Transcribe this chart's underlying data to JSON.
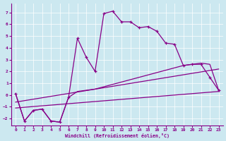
{
  "xlabel": "Windchill (Refroidissement éolien,°C)",
  "background_color": "#cce8f0",
  "line_color": "#880088",
  "xlim": [
    -0.5,
    23.5
  ],
  "ylim": [
    -2.6,
    7.8
  ],
  "yticks": [
    -2,
    -1,
    0,
    1,
    2,
    3,
    4,
    5,
    6,
    7
  ],
  "xticks": [
    0,
    1,
    2,
    3,
    4,
    5,
    6,
    7,
    8,
    9,
    10,
    11,
    12,
    13,
    14,
    15,
    16,
    17,
    18,
    19,
    20,
    21,
    22,
    23
  ],
  "series1_x": [
    0,
    1,
    2,
    3,
    4,
    5,
    6,
    7,
    8,
    9,
    10,
    11,
    12,
    13,
    14,
    15,
    16,
    17,
    18,
    19,
    20,
    21,
    22,
    23
  ],
  "series1_y": [
    0.1,
    -2.2,
    -1.3,
    -1.2,
    -2.2,
    -2.3,
    -0.2,
    4.8,
    3.2,
    2.0,
    6.9,
    7.1,
    6.2,
    6.2,
    5.7,
    5.8,
    5.4,
    4.4,
    4.3,
    2.5,
    2.6,
    2.6,
    1.5,
    0.4
  ],
  "series2_x": [
    0,
    1,
    2,
    3,
    4,
    5,
    6,
    7,
    8,
    9,
    10,
    11,
    12,
    13,
    14,
    15,
    16,
    17,
    18,
    19,
    20,
    21,
    22,
    23
  ],
  "series2_y": [
    0.1,
    -2.2,
    -1.3,
    -1.2,
    -2.2,
    -2.3,
    -0.2,
    0.3,
    0.4,
    0.5,
    0.7,
    0.9,
    1.1,
    1.3,
    1.5,
    1.7,
    1.9,
    2.1,
    2.3,
    2.5,
    2.6,
    2.7,
    2.6,
    0.4
  ],
  "line3_x": [
    0,
    23
  ],
  "line3_y": [
    -1.1,
    0.3
  ],
  "line4_x": [
    0,
    23
  ],
  "line4_y": [
    -0.6,
    2.2
  ]
}
